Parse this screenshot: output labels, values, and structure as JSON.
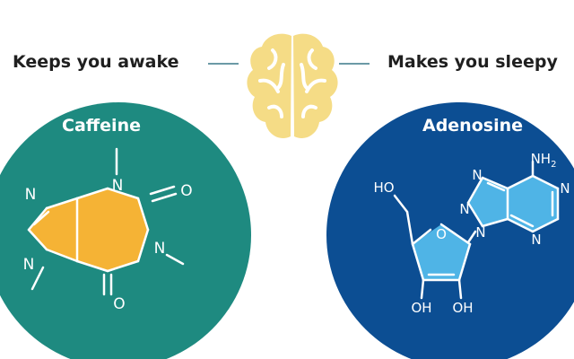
{
  "labels": {
    "left": "Keeps you awake",
    "right": "Makes you sleepy"
  },
  "caffeine": {
    "title": "Caffeine",
    "atoms": {
      "n_top": "N",
      "n_left_top": "N",
      "n_left_bottom": "N",
      "n_right": "N",
      "o_right": "O",
      "o_bottom": "O"
    }
  },
  "adenosine": {
    "title": "Adenosine",
    "atoms": {
      "nh": "NH",
      "nh_sub": "2",
      "n_a": "N",
      "n_b": "N",
      "n_c": "N",
      "n_d": "N",
      "n_e": "N",
      "ho": "HO",
      "o_ring": "O",
      "oh_left": "OH",
      "oh_right": "OH"
    }
  },
  "colors": {
    "caffeine_circle": "#1e8a80",
    "caffeine_fill": "#f5b335",
    "adenosine_circle": "#0c4e93",
    "adenosine_fill": "#4fb4e6",
    "brain": "#f5dc86",
    "brain_lines": "#ffffff",
    "connector": "#6b9aa6",
    "text": "#1f1f1f"
  }
}
